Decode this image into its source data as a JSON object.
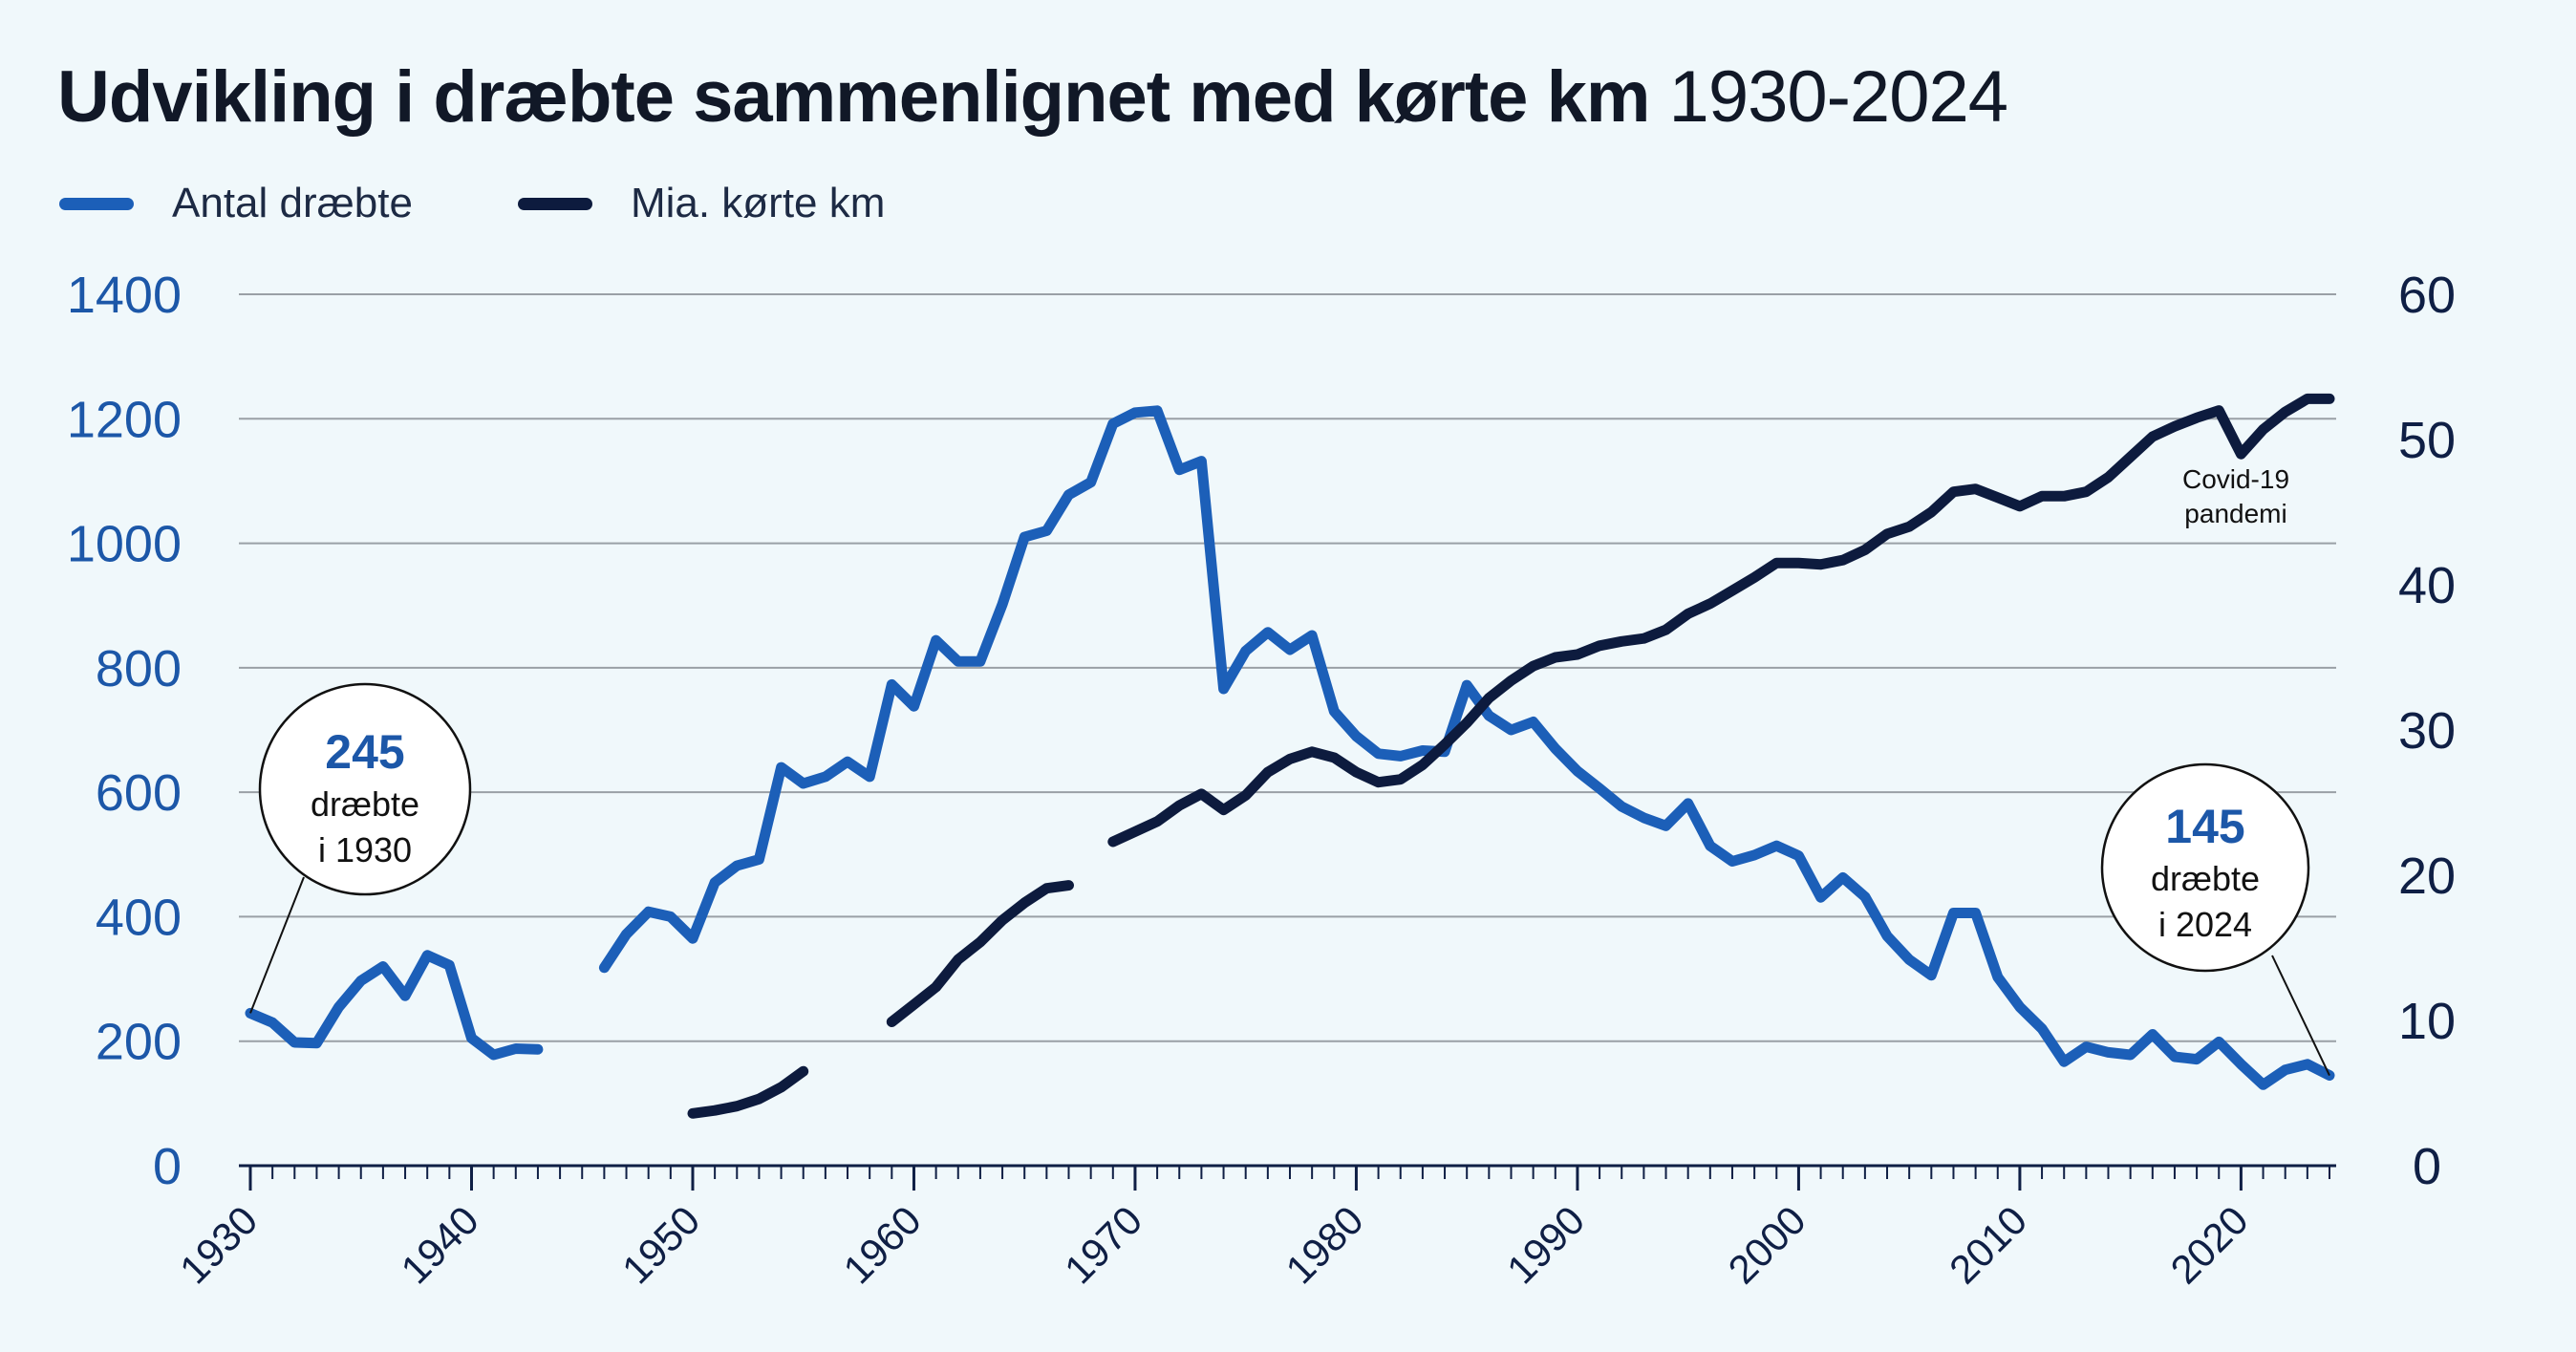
{
  "title": {
    "main": "Udvikling i dræbte sammenlignet med kørte km",
    "period": "1930-2024"
  },
  "legend": [
    {
      "label": "Antal dræbte",
      "color": "#1c5fb8"
    },
    {
      "label": "Mia. kørte km",
      "color": "#0d1b3e"
    }
  ],
  "chart_data": {
    "type": "line",
    "x_ticks": [
      "1930",
      "1940",
      "1950",
      "1960",
      "1970",
      "1980",
      "1990",
      "2000",
      "2010",
      "2020"
    ],
    "y_left_ticks": [
      "0",
      "200",
      "400",
      "600",
      "800",
      "1000",
      "1200",
      "1400"
    ],
    "y_right_ticks": [
      "0",
      "10",
      "20",
      "30",
      "40",
      "50",
      "60"
    ],
    "ylim_left": [
      0,
      1400
    ],
    "ylim_right": [
      0,
      60
    ],
    "xlim": [
      1930,
      2024
    ],
    "grid": true,
    "series": [
      {
        "name": "Antal dræbte",
        "axis": "left",
        "color": "#1c5fb8",
        "segments": [
          [
            [
              1930,
              245
            ],
            [
              1931,
              230
            ],
            [
              1932,
              198
            ],
            [
              1933,
              197
            ],
            [
              1934,
              255
            ],
            [
              1935,
              297
            ],
            [
              1936,
              320
            ],
            [
              1937,
              273
            ],
            [
              1938,
              338
            ],
            [
              1939,
              322
            ],
            [
              1940,
              205
            ],
            [
              1941,
              178
            ],
            [
              1942,
              188
            ],
            [
              1943,
              187
            ]
          ],
          [
            [
              1946,
              318
            ],
            [
              1947,
              372
            ],
            [
              1948,
              408
            ],
            [
              1949,
              400
            ],
            [
              1950,
              365
            ],
            [
              1951,
              455
            ],
            [
              1952,
              482
            ],
            [
              1953,
              492
            ],
            [
              1954,
              640
            ],
            [
              1955,
              614
            ],
            [
              1956,
              625
            ],
            [
              1957,
              649
            ],
            [
              1958,
              625
            ],
            [
              1959,
              773
            ],
            [
              1960,
              738
            ],
            [
              1961,
              844
            ],
            [
              1962,
              810
            ],
            [
              1963,
              810
            ],
            [
              1964,
              902
            ],
            [
              1965,
              1010
            ],
            [
              1966,
              1020
            ],
            [
              1967,
              1078
            ],
            [
              1968,
              1098
            ],
            [
              1969,
              1192
            ],
            [
              1970,
              1210
            ],
            [
              1971,
              1213
            ],
            [
              1972,
              1118
            ],
            [
              1973,
              1132
            ],
            [
              1974,
              766
            ],
            [
              1975,
              827
            ],
            [
              1976,
              857
            ],
            [
              1977,
              829
            ],
            [
              1978,
              852
            ],
            [
              1979,
              730
            ],
            [
              1980,
              690
            ],
            [
              1981,
              662
            ],
            [
              1982,
              658
            ],
            [
              1983,
              667
            ],
            [
              1984,
              665
            ],
            [
              1985,
              772
            ],
            [
              1986,
              723
            ],
            [
              1987,
              700
            ],
            [
              1988,
              713
            ],
            [
              1989,
              670
            ],
            [
              1990,
              634
            ],
            [
              1991,
              606
            ],
            [
              1992,
              577
            ],
            [
              1993,
              559
            ],
            [
              1994,
              546
            ],
            [
              1995,
              582
            ],
            [
              1996,
              514
            ],
            [
              1997,
              489
            ],
            [
              1998,
              499
            ],
            [
              1999,
              514
            ],
            [
              2000,
              498
            ],
            [
              2001,
              431
            ],
            [
              2002,
              463
            ],
            [
              2003,
              432
            ],
            [
              2004,
              369
            ],
            [
              2005,
              331
            ],
            [
              2006,
              306
            ],
            [
              2007,
              406
            ],
            [
              2008,
              406
            ],
            [
              2009,
              303
            ],
            [
              2010,
              255
            ],
            [
              2011,
              220
            ],
            [
              2012,
              167
            ],
            [
              2013,
              191
            ],
            [
              2014,
              182
            ],
            [
              2015,
              178
            ],
            [
              2016,
              211
            ],
            [
              2017,
              175
            ],
            [
              2018,
              171
            ],
            [
              2019,
              199
            ],
            [
              2020,
              163
            ],
            [
              2021,
              130
            ],
            [
              2022,
              154
            ],
            [
              2023,
              163
            ],
            [
              2024,
              145
            ]
          ]
        ]
      },
      {
        "name": "Mia. kørte km",
        "axis": "right",
        "color": "#0d1b3e",
        "segments": [
          [
            [
              1950,
              3.6
            ],
            [
              1951,
              3.8
            ],
            [
              1952,
              4.1
            ],
            [
              1953,
              4.6
            ],
            [
              1954,
              5.4
            ],
            [
              1955,
              6.5
            ]
          ],
          [
            [
              1959,
              9.9
            ],
            [
              1960,
              11.1
            ],
            [
              1961,
              12.3
            ],
            [
              1962,
              14.2
            ],
            [
              1963,
              15.4
            ],
            [
              1964,
              16.9
            ],
            [
              1965,
              18.1
            ],
            [
              1966,
              19.1
            ],
            [
              1967,
              19.3
            ]
          ],
          [
            [
              1969,
              22.3
            ],
            [
              1970,
              23.0
            ],
            [
              1971,
              23.7
            ],
            [
              1972,
              24.8
            ],
            [
              1973,
              25.6
            ],
            [
              1974,
              24.5
            ],
            [
              1975,
              25.5
            ],
            [
              1976,
              27.1
            ],
            [
              1977,
              28.0
            ],
            [
              1978,
              28.5
            ],
            [
              1979,
              28.1
            ],
            [
              1980,
              27.1
            ],
            [
              1981,
              26.4
            ],
            [
              1982,
              26.6
            ],
            [
              1983,
              27.6
            ],
            [
              1984,
              29.0
            ],
            [
              1985,
              30.5
            ],
            [
              1986,
              32.2
            ],
            [
              1987,
              33.4
            ],
            [
              1988,
              34.4
            ],
            [
              1989,
              35.0
            ],
            [
              1990,
              35.2
            ],
            [
              1991,
              35.8
            ],
            [
              1992,
              36.1
            ],
            [
              1993,
              36.3
            ],
            [
              1994,
              36.9
            ],
            [
              1995,
              38.0
            ],
            [
              1996,
              38.7
            ],
            [
              1997,
              39.6
            ],
            [
              1998,
              40.5
            ],
            [
              1999,
              41.5
            ],
            [
              2000,
              41.5
            ],
            [
              2001,
              41.4
            ],
            [
              2002,
              41.7
            ],
            [
              2003,
              42.4
            ],
            [
              2004,
              43.5
            ],
            [
              2005,
              44.0
            ],
            [
              2006,
              45.0
            ],
            [
              2007,
              46.4
            ],
            [
              2008,
              46.6
            ],
            [
              2009,
              46.0
            ],
            [
              2010,
              45.4
            ],
            [
              2011,
              46.1
            ],
            [
              2012,
              46.1
            ],
            [
              2013,
              46.4
            ],
            [
              2014,
              47.4
            ],
            [
              2015,
              48.8
            ],
            [
              2016,
              50.2
            ],
            [
              2017,
              50.9
            ],
            [
              2018,
              51.5
            ],
            [
              2019,
              52.0
            ],
            [
              2020,
              49.0
            ],
            [
              2021,
              50.7
            ],
            [
              2022,
              51.9
            ],
            [
              2023,
              52.8
            ],
            [
              2024,
              52.8
            ]
          ]
        ]
      }
    ],
    "annotations": [
      {
        "value": "245",
        "line1": "dræbte",
        "line2": "i 1930"
      },
      {
        "value": "145",
        "line1": "dræbte",
        "line2": "i 2024"
      },
      {
        "line1": "Covid-19",
        "line2": "pandemi"
      }
    ]
  }
}
